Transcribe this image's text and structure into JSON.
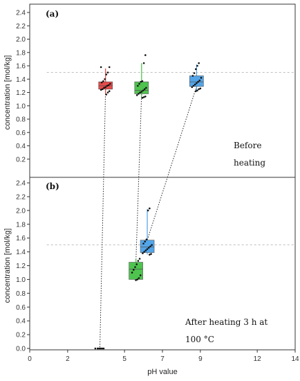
{
  "chart_data": {
    "type": "box",
    "xlabel": "pH value",
    "ylabel": "concentration [mol/kg]",
    "xlim": [
      0,
      14
    ],
    "x_ticks": [
      0,
      2,
      5,
      7,
      9,
      12,
      14
    ],
    "x_tick_labels": [
      "0",
      "2",
      "5",
      "7",
      "9",
      "12",
      "14"
    ],
    "reference_line": 1.5,
    "panels": [
      {
        "label": "(a)",
        "note": [
          "Before",
          "heating"
        ],
        "ylim": [
          0,
          2.5
        ],
        "y_ticks": [
          0.2,
          0.4,
          0.6,
          0.8,
          1.0,
          1.2,
          1.4,
          1.6,
          1.8,
          2.0,
          2.2,
          2.4
        ],
        "y_tick_labels": [
          "0.2",
          "0.4",
          "0.6",
          "0.8",
          "1.0",
          "1.2",
          "1.4",
          "1.6",
          "1.8",
          "2.0",
          "2.2",
          "2.4"
        ],
        "boxes": [
          {
            "x": 4.0,
            "q1": 1.25,
            "median": 1.3,
            "q3": 1.36,
            "whisker_low": 1.17,
            "whisker_high": 1.56,
            "color": "#e84040",
            "points": [
              1.58,
              1.58,
              1.5,
              1.47,
              1.4,
              1.37,
              1.35,
              1.33,
              1.31,
              1.3,
              1.28,
              1.27,
              1.25,
              1.24,
              1.22,
              1.2,
              1.17
            ]
          },
          {
            "x": 5.9,
            "q1": 1.18,
            "median": 1.23,
            "q3": 1.36,
            "whisker_low": 1.12,
            "whisker_high": 1.64,
            "color": "#44c044",
            "points": [
              1.76,
              1.64,
              1.37,
              1.36,
              1.33,
              1.3,
              1.27,
              1.25,
              1.23,
              1.21,
              1.2,
              1.18,
              1.16,
              1.14,
              1.13,
              1.12
            ]
          },
          {
            "x": 8.8,
            "q1": 1.29,
            "median": 1.36,
            "q3": 1.45,
            "whisker_low": 1.22,
            "whisker_high": 1.62,
            "color": "#4aa0e8",
            "points": [
              1.64,
              1.6,
              1.55,
              1.49,
              1.45,
              1.42,
              1.38,
              1.36,
              1.34,
              1.32,
              1.3,
              1.28,
              1.26,
              1.25,
              1.23,
              1.22
            ]
          }
        ]
      },
      {
        "label": "(b)",
        "note": [
          "After heating 3 h at",
          "100 °C"
        ],
        "ylim": [
          0,
          2.5
        ],
        "y_ticks": [
          0.0,
          0.2,
          0.4,
          0.6,
          0.8,
          1.0,
          1.2,
          1.4,
          1.6,
          1.8,
          2.0,
          2.2,
          2.4
        ],
        "y_tick_labels": [
          "0.0",
          "0.2",
          "0.4",
          "0.6",
          "0.8",
          "1.0",
          "1.2",
          "1.4",
          "1.6",
          "1.8",
          "2.0",
          "2.2",
          "2.4"
        ],
        "boxes": [
          {
            "x": 3.7,
            "q1": 0.0,
            "median": 0.0,
            "q3": 0.0,
            "whisker_low": 0.0,
            "whisker_high": 0.0,
            "color": "#e84040",
            "points": [
              0.0,
              0.0,
              0.0,
              0.0,
              0.0,
              0.0
            ]
          },
          {
            "x": 5.6,
            "q1": 1.0,
            "median": 1.15,
            "q3": 1.25,
            "whisker_low": 0.99,
            "whisker_high": 1.3,
            "color": "#44c044",
            "points": [
              1.3,
              1.27,
              1.22,
              1.18,
              1.14,
              1.1,
              1.06,
              1.02,
              1.0,
              0.99
            ]
          },
          {
            "x": 6.2,
            "q1": 1.39,
            "median": 1.47,
            "q3": 1.57,
            "whisker_low": 1.36,
            "whisker_high": 2.02,
            "color": "#4aa0e8",
            "points": [
              2.03,
              2.0,
              1.58,
              1.55,
              1.52,
              1.5,
              1.48,
              1.46,
              1.44,
              1.42,
              1.4,
              1.38,
              1.37,
              1.36
            ]
          }
        ]
      }
    ],
    "transitions": [
      {
        "from": {
          "x": 4.0,
          "y": 1.25
        },
        "to": {
          "x": 3.7,
          "y": 0.0
        }
      },
      {
        "from": {
          "x": 5.9,
          "y": 1.18
        },
        "to": {
          "x": 5.6,
          "y": 1.25
        }
      },
      {
        "from": {
          "x": 8.8,
          "y": 1.29
        },
        "to": {
          "x": 6.2,
          "y": 1.57
        }
      }
    ]
  }
}
